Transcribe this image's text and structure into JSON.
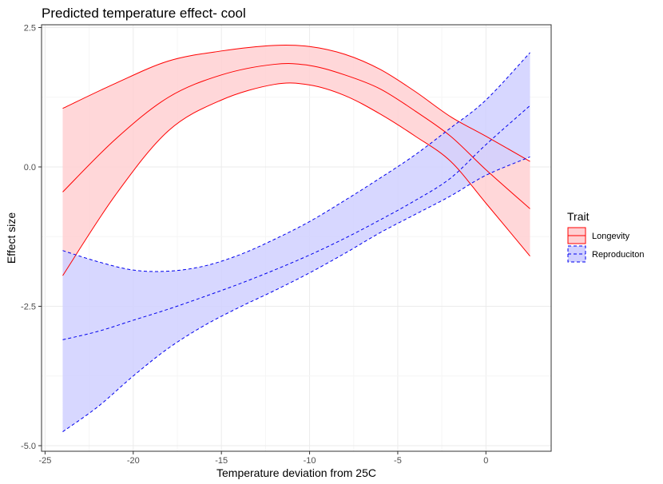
{
  "chart_data": {
    "type": "line",
    "title": "Predicted temperature effect- cool",
    "xlabel": "Temperature deviation from 25C",
    "ylabel": "Effect size",
    "xlim": [
      -25.2,
      3.7
    ],
    "ylim": [
      -5.1,
      2.55
    ],
    "x_ticks": [
      -25,
      -20,
      -15,
      -10,
      -5,
      0
    ],
    "x_tick_labels": [
      "-25",
      "-20",
      "-15",
      "-10",
      "-5",
      "0"
    ],
    "y_ticks": [
      -5.0,
      -2.5,
      0.0,
      2.5
    ],
    "y_tick_labels": [
      "-5.0",
      "-2.5",
      "0.0",
      "2.5"
    ],
    "grid": true,
    "legend": {
      "title": "Trait",
      "position": "right",
      "entries": [
        "Longevity",
        "Reproduciton"
      ]
    },
    "series": [
      {
        "name": "Longevity",
        "color": "#ff0000",
        "fill": "#ffd0d2",
        "dash": "solid",
        "x": [
          -24,
          -21,
          -18,
          -15,
          -12,
          -10,
          -8,
          -6,
          -4,
          -2,
          0,
          2.5
        ],
        "fit": [
          -0.45,
          0.5,
          1.25,
          1.65,
          1.84,
          1.82,
          1.65,
          1.4,
          1.0,
          0.55,
          -0.05,
          -0.75
        ],
        "upper": [
          1.05,
          1.5,
          1.9,
          2.08,
          2.18,
          2.16,
          2.02,
          1.75,
          1.35,
          0.9,
          0.55,
          0.1
        ],
        "lower": [
          -1.95,
          -0.5,
          0.65,
          1.2,
          1.48,
          1.47,
          1.28,
          0.95,
          0.55,
          0.1,
          -0.65,
          -1.6
        ]
      },
      {
        "name": "Reproduciton",
        "color": "#0000ee",
        "fill": "#d0d0ff",
        "dash": "dashed",
        "x": [
          -24,
          -22,
          -20,
          -18,
          -16,
          -14,
          -12,
          -10,
          -8,
          -6,
          -4,
          -2,
          0,
          2.5
        ],
        "fit": [
          -3.1,
          -2.95,
          -2.75,
          -2.55,
          -2.33,
          -2.1,
          -1.85,
          -1.58,
          -1.28,
          -0.95,
          -0.6,
          -0.2,
          0.4,
          1.1
        ],
        "upper": [
          -1.5,
          -1.7,
          -1.85,
          -1.87,
          -1.78,
          -1.58,
          -1.3,
          -0.98,
          -0.6,
          -0.2,
          0.22,
          0.7,
          1.2,
          2.05
        ],
        "lower": [
          -4.75,
          -4.3,
          -3.75,
          -3.25,
          -2.85,
          -2.52,
          -2.22,
          -1.9,
          -1.55,
          -1.18,
          -0.85,
          -0.52,
          -0.15,
          0.18
        ]
      }
    ]
  }
}
